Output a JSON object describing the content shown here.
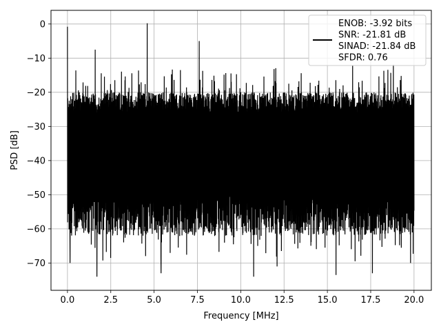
{
  "chart_data": {
    "type": "line",
    "title": "",
    "xlabel": "Frequency [MHz]",
    "ylabel": "PSD [dB]",
    "xlim": [
      -0.95,
      21.0
    ],
    "ylim": [
      -78,
      4
    ],
    "x_ticks": [
      0.0,
      2.5,
      5.0,
      7.5,
      10.0,
      12.5,
      15.0,
      17.5,
      20.0
    ],
    "x_tick_labels": [
      "0.0",
      "2.5",
      "5.0",
      "7.5",
      "10.0",
      "12.5",
      "15.0",
      "17.5",
      "20.0"
    ],
    "y_ticks": [
      0,
      -10,
      -20,
      -30,
      -40,
      -50,
      -60,
      -70
    ],
    "y_tick_labels": [
      "0",
      "−10",
      "−20",
      "−30",
      "−40",
      "−50",
      "−60",
      "−70"
    ],
    "grid": true,
    "legend_position": "top-right",
    "series": [
      {
        "name": "ENOB: -3.92 bits\nSNR: -21.81 dB\nSINAD: -21.84 dB\nSFDR: 0.76",
        "color": "#000000",
        "x_start": 0.0,
        "x_end": 20.0,
        "noise_band_upper": [
          -26,
          -20
        ],
        "noise_band_lower": [
          -50,
          -62
        ],
        "spikes": [
          {
            "x": 0.0,
            "y": -0.8
          },
          {
            "x": 1.6,
            "y": -7.5
          },
          {
            "x": 4.6,
            "y": 0.2
          },
          {
            "x": 7.6,
            "y": -5
          },
          {
            "x": 0.15,
            "y": -70
          },
          {
            "x": 1.7,
            "y": -74
          },
          {
            "x": 5.4,
            "y": -73
          },
          {
            "x": 10.75,
            "y": -74
          },
          {
            "x": 15.5,
            "y": -73.5
          },
          {
            "x": 17.6,
            "y": -73
          },
          {
            "x": 12.1,
            "y": -71
          },
          {
            "x": 16.6,
            "y": -69.5
          },
          {
            "x": 19.8,
            "y": -70
          }
        ]
      }
    ]
  }
}
